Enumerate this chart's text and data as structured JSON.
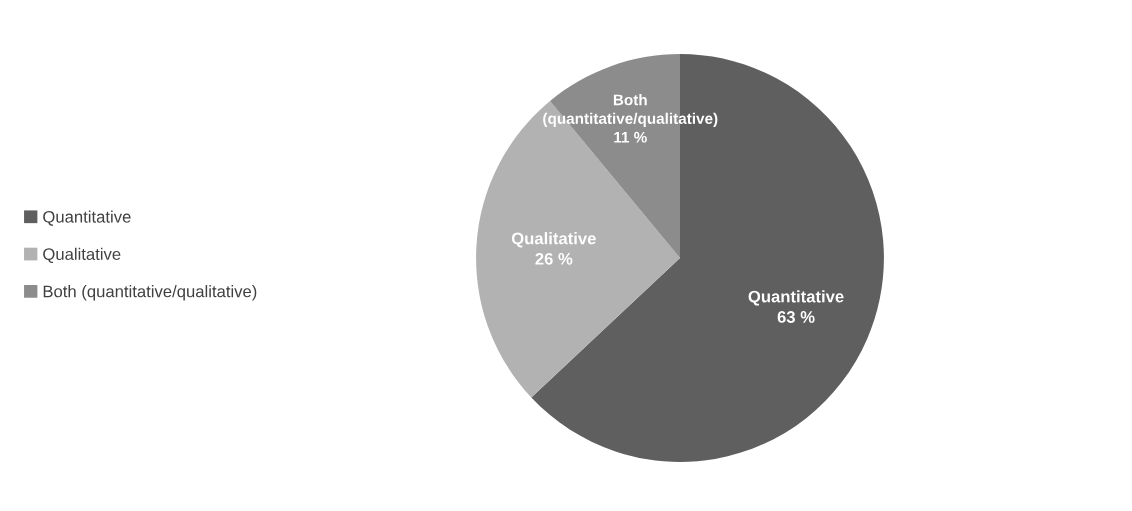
{
  "chart_data": {
    "type": "pie",
    "categories": [
      "Quantitative",
      "Qualitative",
      "Both (quantitative/qualitative)"
    ],
    "values": [
      63,
      26,
      11
    ],
    "colors": [
      "#5f5f5f",
      "#b2b2b2",
      "#8c8c8c"
    ],
    "value_labels": [
      "63 %",
      "26 %",
      "11 %"
    ],
    "legend": "left"
  }
}
